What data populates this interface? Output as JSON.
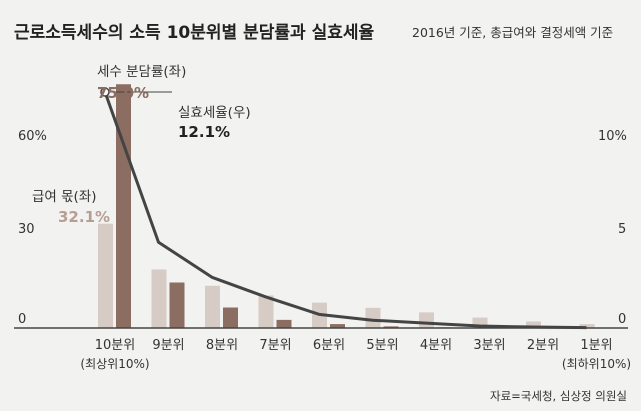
{
  "chart_data": {
    "type": "bar+line",
    "title": "근로소득세수의 소득 10분위별 분담률과 실효세율",
    "subtitle": "2016년 기준, 총급여와 결정세액 기준",
    "categories": [
      "10분위",
      "9분위",
      "8분위",
      "7분위",
      "6분위",
      "5분위",
      "4분위",
      "3분위",
      "2분위",
      "1분위"
    ],
    "category_notes": {
      "first": "(최상위10%)",
      "last": "(최하위10%)"
    },
    "left_axis": {
      "ticks": [
        "0",
        "30",
        "60%"
      ],
      "ylim": [
        0,
        72
      ]
    },
    "right_axis": {
      "ticks": [
        "0",
        "5",
        "10%"
      ],
      "ylim": [
        0,
        12
      ]
    },
    "series": [
      {
        "name": "급여 몫(좌)",
        "type": "bar",
        "axis": "left",
        "color": "#d7cbc5",
        "values": [
          32.1,
          18.0,
          13.0,
          10.0,
          7.8,
          6.2,
          4.8,
          3.2,
          2.0,
          1.2
        ]
      },
      {
        "name": "세수 분담률(좌)",
        "type": "bar",
        "axis": "left",
        "color": "#8b6d62",
        "values": [
          75.0,
          14.0,
          6.3,
          2.5,
          1.2,
          0.5,
          0.2,
          0.1,
          0.0,
          0.0
        ]
      },
      {
        "name": "실효세율(우)",
        "type": "line",
        "axis": "right",
        "color": "#444444",
        "values": [
          12.1,
          4.4,
          2.6,
          1.6,
          0.7,
          0.4,
          0.25,
          0.1,
          0.05,
          0.02
        ]
      }
    ],
    "annotations": [
      {
        "label": "세수 분담률(좌)",
        "value": "75.0%",
        "color": "#8b6d62"
      },
      {
        "label": "실효세율(우)",
        "value": "12.1%",
        "color": "#222222"
      },
      {
        "label": "급여 몫(좌)",
        "value": "32.1%",
        "color": "#b89e92"
      }
    ],
    "source": "자료=국세청, 심상정 의원실"
  }
}
